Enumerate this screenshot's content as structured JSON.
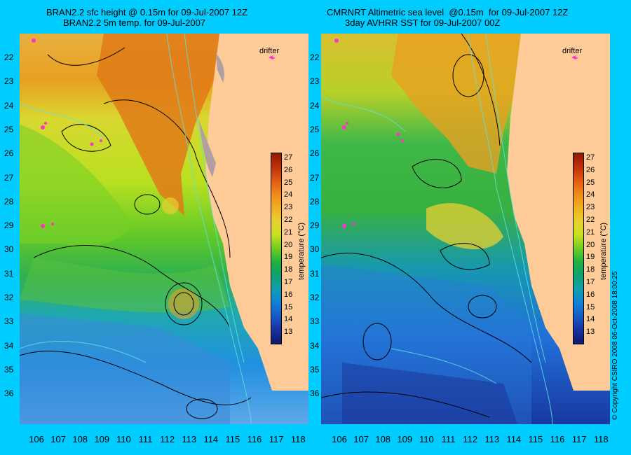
{
  "left_panel": {
    "title_line1": "BRAN2.2 sfc height @ 0.15m for 09-Jul-2007 12Z",
    "title_line2": "BRAN2.2 5m temp. for 09-Jul-2007",
    "drifter_label": "drifter"
  },
  "right_panel": {
    "title_line1": "CMRNRT Altimetric sea level  @0.15m  for 09-Jul-2007 12Z",
    "title_line2": "3day AVHRR SST for 09-Jul-2007 00Z",
    "drifter_label": "drifter"
  },
  "latitude_labels": [
    "22",
    "23",
    "24",
    "25",
    "26",
    "27",
    "28",
    "29",
    "30",
    "31",
    "32",
    "33",
    "34",
    "35",
    "36"
  ],
  "longitude_labels": [
    "106",
    "107",
    "108",
    "109",
    "110",
    "111",
    "112",
    "113",
    "114",
    "115",
    "116",
    "117",
    "118"
  ],
  "colorbar": {
    "title": "temperature (°C)",
    "ticks": [
      "27",
      "26",
      "25",
      "24",
      "23",
      "22",
      "21",
      "20",
      "19",
      "18",
      "17",
      "16",
      "15",
      "14",
      "13"
    ],
    "colors": [
      "#8b1a00",
      "#c0300a",
      "#e05a10",
      "#f08a1a",
      "#f0b020",
      "#e8d030",
      "#c8e020",
      "#70cc20",
      "#20b040",
      "#10a070",
      "#10a0b0",
      "#1080d8",
      "#1858c8",
      "#1830a0",
      "#101870"
    ]
  },
  "copyright": "© Copyright CSIRO 2008   06-Oct-2008 18:00:25",
  "land_color": "#ffcc99",
  "background_color": "#00ccff"
}
